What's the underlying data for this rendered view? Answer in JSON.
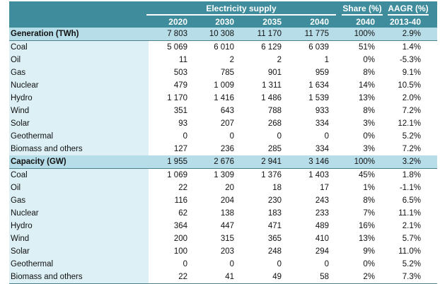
{
  "header": {
    "group": "Electricity supply",
    "share": "Share (%)",
    "aagr": "AAGR (%)",
    "years": [
      "2020",
      "2030",
      "2035",
      "2040",
      "2040",
      "2013-40"
    ]
  },
  "sections": [
    {
      "title": "Generation (TWh)",
      "totals": [
        "7 803",
        "10 308",
        "11 170",
        "11 775",
        "100%",
        "2.9%"
      ],
      "rows": [
        {
          "label": "Coal",
          "values": [
            "5 069",
            "6 010",
            "6 129",
            "6 039",
            "51%",
            "1.4%"
          ]
        },
        {
          "label": "Oil",
          "values": [
            "11",
            "2",
            "2",
            "1",
            "0%",
            "-5.3%"
          ]
        },
        {
          "label": "Gas",
          "values": [
            "503",
            "785",
            "901",
            "959",
            "8%",
            "9.1%"
          ]
        },
        {
          "label": "Nuclear",
          "values": [
            "479",
            "1 009",
            "1 311",
            "1 634",
            "14%",
            "10.5%"
          ]
        },
        {
          "label": "Hydro",
          "values": [
            "1 170",
            "1 416",
            "1 486",
            "1 539",
            "13%",
            "2.0%"
          ]
        },
        {
          "label": "Wind",
          "values": [
            "351",
            "643",
            "788",
            "933",
            "8%",
            "7.2%"
          ]
        },
        {
          "label": "Solar",
          "values": [
            "93",
            "207",
            "268",
            "334",
            "3%",
            "12.1%"
          ]
        },
        {
          "label": "Geothermal",
          "values": [
            "0",
            "0",
            "0",
            "0",
            "0%",
            "5.2%"
          ]
        },
        {
          "label": "Biomass and others",
          "values": [
            "127",
            "236",
            "285",
            "334",
            "3%",
            "7.2%"
          ]
        }
      ]
    },
    {
      "title": "Capacity (GW)",
      "totals": [
        "1 955",
        "2 676",
        "2 941",
        "3 146",
        "100%",
        "3.2%"
      ],
      "rows": [
        {
          "label": "Coal",
          "values": [
            "1 069",
            "1 309",
            "1 376",
            "1 403",
            "45%",
            "1.8%"
          ]
        },
        {
          "label": "Oil",
          "values": [
            "22",
            "20",
            "18",
            "17",
            "1%",
            "-1.1%"
          ]
        },
        {
          "label": "Gas",
          "values": [
            "116",
            "204",
            "230",
            "243",
            "8%",
            "6.5%"
          ]
        },
        {
          "label": "Nuclear",
          "values": [
            "62",
            "138",
            "183",
            "233",
            "7%",
            "11.1%"
          ]
        },
        {
          "label": "Hydro",
          "values": [
            "364",
            "447",
            "471",
            "489",
            "16%",
            "2.1%"
          ]
        },
        {
          "label": "Wind",
          "values": [
            "200",
            "315",
            "365",
            "410",
            "13%",
            "5.7%"
          ]
        },
        {
          "label": "Solar",
          "values": [
            "100",
            "203",
            "248",
            "294",
            "9%",
            "11.0%"
          ]
        },
        {
          "label": "Geothermal",
          "values": [
            "0",
            "0",
            "0",
            "0",
            "0%",
            "5.2%"
          ]
        },
        {
          "label": "Biomass and others",
          "values": [
            "22",
            "41",
            "49",
            "58",
            "2%",
            "7.3%"
          ]
        }
      ]
    }
  ]
}
